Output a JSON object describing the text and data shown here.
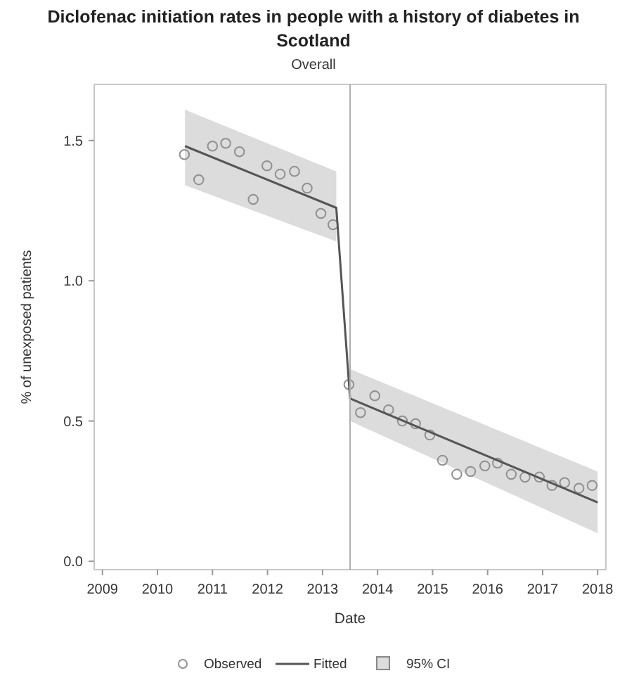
{
  "chart_data": {
    "type": "scatter",
    "title": "Diclofenac initiation rates in people with a history of diabetes in Scotland",
    "subtitle": "Overall",
    "xlabel": "Date",
    "ylabel": "% of unexposed patients",
    "xlim": [
      2008.85,
      2018.15
    ],
    "ylim": [
      -0.03,
      1.7
    ],
    "xticks": [
      2009,
      2010,
      2011,
      2012,
      2013,
      2014,
      2015,
      2016,
      2017,
      2018
    ],
    "yticks": [
      {
        "value": 0,
        "label": "0.0"
      },
      {
        "value": 0.5,
        "label": "0.5"
      },
      {
        "value": 1,
        "label": "1.0"
      },
      {
        "value": 1.5,
        "label": "1.5"
      }
    ],
    "grid": false,
    "legend": "bottom",
    "ref_lines": [
      {
        "axis": "x",
        "value": 2013.5,
        "color": "#b0b0b0"
      }
    ],
    "series": [
      {
        "name": "Observed",
        "marker": "circle",
        "color": "#909090",
        "x": [
          2010.49,
          2010.75,
          2011.0,
          2011.24,
          2011.49,
          2011.74,
          2011.99,
          2012.23,
          2012.49,
          2012.72,
          2012.97,
          2013.19,
          2013.48,
          2013.69,
          2013.95,
          2014.2,
          2014.45,
          2014.69,
          2014.95,
          2015.18,
          2015.44,
          2015.69,
          2015.95,
          2016.18,
          2016.43,
          2016.68,
          2016.94,
          2017.17,
          2017.4,
          2017.66,
          2017.9
        ],
        "values": [
          1.45,
          1.36,
          1.48,
          1.49,
          1.46,
          1.29,
          1.41,
          1.38,
          1.39,
          1.33,
          1.24,
          1.2,
          0.63,
          0.53,
          0.59,
          0.54,
          0.5,
          0.49,
          0.45,
          0.36,
          0.31,
          0.32,
          0.34,
          0.35,
          0.31,
          0.3,
          0.3,
          0.27,
          0.28,
          0.26,
          0.27
        ]
      },
      {
        "name": "Fitted",
        "type": "line",
        "line_style": "solid",
        "color": "#555555",
        "x": [
          2010.5,
          2013.25,
          2013.5,
          2018.0
        ],
        "values": [
          1.48,
          1.26,
          0.58,
          0.21
        ]
      },
      {
        "name": "95% CI",
        "type": "area",
        "color": "#dcdcdc",
        "x": [
          2010.5,
          2013.25
        ],
        "values": [
          null,
          null
        ],
        "lower": [
          1.34,
          1.14
        ],
        "upper": [
          1.61,
          1.39
        ]
      },
      {
        "type": "area",
        "color": "#dcdcdc",
        "x": [
          2013.5,
          2018.0
        ],
        "values": [
          null,
          null
        ],
        "lower": [
          0.5,
          0.1
        ],
        "upper": [
          0.685,
          0.32
        ]
      }
    ]
  }
}
